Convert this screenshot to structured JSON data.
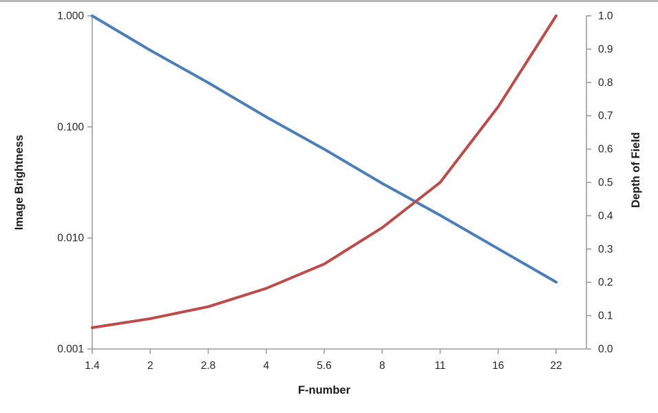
{
  "chart_data": {
    "type": "line",
    "title": "",
    "xlabel": "F-number",
    "x_categories": [
      "1.4",
      "2",
      "2.8",
      "4",
      "5.6",
      "8",
      "11",
      "16",
      "22"
    ],
    "series": [
      {
        "name": "Image Brightness",
        "axis": "left",
        "color": "#4A7EBB",
        "values": [
          1.0,
          0.49,
          0.25,
          0.123,
          0.063,
          0.031,
          0.016,
          0.008,
          0.004
        ]
      },
      {
        "name": "Depth of Field",
        "axis": "right",
        "color": "#BE4B48",
        "values": [
          0.064,
          0.091,
          0.127,
          0.182,
          0.255,
          0.364,
          0.5,
          0.727,
          1.0
        ]
      }
    ],
    "left_axis": {
      "label": "Image Brightness",
      "scale": "log",
      "range": [
        0.001,
        1.0
      ],
      "tick_labels": [
        "1.000",
        "0.100",
        "0.010",
        "0.001"
      ],
      "tick_values": [
        1.0,
        0.1,
        0.01,
        0.001
      ]
    },
    "right_axis": {
      "label": "Depth of Field",
      "scale": "linear",
      "range": [
        0.0,
        1.0
      ],
      "tick_labels": [
        "1.0",
        "0.9",
        "0.8",
        "0.7",
        "0.6",
        "0.5",
        "0.4",
        "0.3",
        "0.2",
        "0.1",
        "0.0"
      ],
      "tick_values": [
        1.0,
        0.9,
        0.8,
        0.7,
        0.6,
        0.5,
        0.4,
        0.3,
        0.2,
        0.1,
        0.0
      ]
    },
    "legend": "none",
    "grid": "off",
    "colors": {
      "axis_line": "#9B9B9B",
      "top_border": "#A8A8A8",
      "text": "#262626"
    }
  }
}
